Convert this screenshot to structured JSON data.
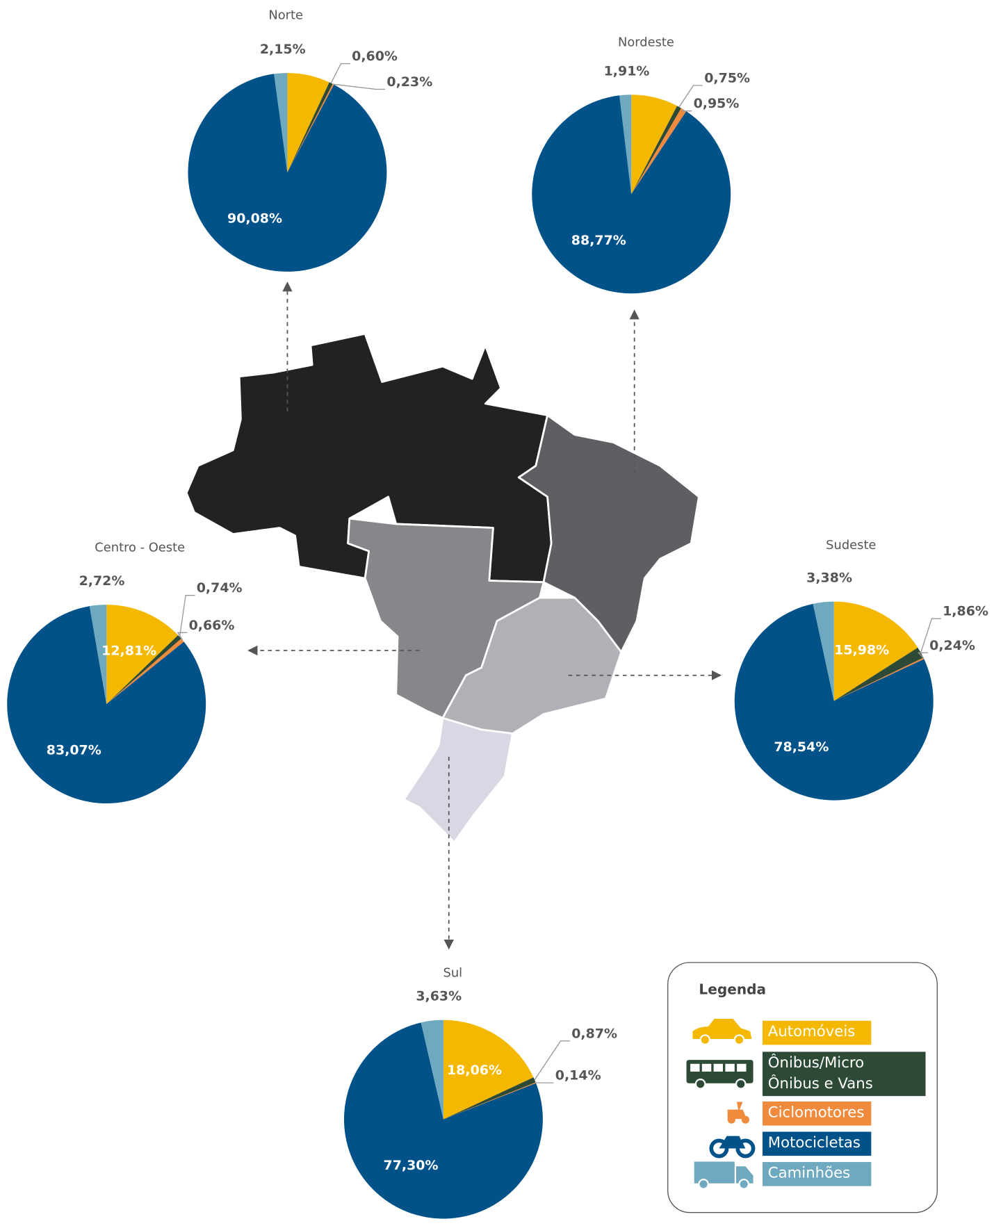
{
  "chart_data": [
    {
      "type": "pie",
      "title": "Norte",
      "categories": [
        "Automóveis",
        "Ônibus/Micro Ônibus e Vans",
        "Ciclomotores",
        "Motocicletas",
        "Caminhões"
      ],
      "values": [
        6.94,
        0.6,
        0.23,
        90.08,
        2.15
      ],
      "value_labels": [
        null,
        "0,60%",
        "0,23%",
        "90,08%",
        "2,15%"
      ],
      "colors": [
        "#f5b800",
        "#2d4a36",
        "#f08a3c",
        "#005288",
        "#6fa9c0"
      ]
    },
    {
      "type": "pie",
      "title": "Nordeste",
      "categories": [
        "Automóveis",
        "Ônibus/Micro Ônibus e Vans",
        "Ciclomotores",
        "Motocicletas",
        "Caminhões"
      ],
      "values": [
        7.62,
        0.75,
        0.95,
        88.77,
        1.91
      ],
      "value_labels": [
        null,
        "0,75%",
        "0,95%",
        "88,77%",
        "1,91%"
      ],
      "colors": [
        "#f5b800",
        "#2d4a36",
        "#f08a3c",
        "#005288",
        "#6fa9c0"
      ]
    },
    {
      "type": "pie",
      "title": "Centro - Oeste",
      "categories": [
        "Automóveis",
        "Ônibus/Micro Ônibus e Vans",
        "Ciclomotores",
        "Motocicletas",
        "Caminhões"
      ],
      "values": [
        12.81,
        0.74,
        0.66,
        83.07,
        2.72
      ],
      "value_labels": [
        "12,81%",
        "0,74%",
        "0,66%",
        "83,07%",
        "2,72%"
      ],
      "colors": [
        "#f5b800",
        "#2d4a36",
        "#f08a3c",
        "#005288",
        "#6fa9c0"
      ]
    },
    {
      "type": "pie",
      "title": "Sudeste",
      "categories": [
        "Automóveis",
        "Ônibus/Micro Ônibus e Vans",
        "Ciclomotores",
        "Motocicletas",
        "Caminhões"
      ],
      "values": [
        15.98,
        1.86,
        0.24,
        78.54,
        3.38
      ],
      "value_labels": [
        "15,98%",
        "1,86%",
        "0,24%",
        "78,54%",
        "3,38%"
      ],
      "colors": [
        "#f5b800",
        "#2d4a36",
        "#f08a3c",
        "#005288",
        "#6fa9c0"
      ]
    },
    {
      "type": "pie",
      "title": "Sul",
      "categories": [
        "Automóveis",
        "Ônibus/Micro Ônibus e Vans",
        "Ciclomotores",
        "Motocicletas",
        "Caminhões"
      ],
      "values": [
        18.06,
        0.87,
        0.14,
        77.3,
        3.63
      ],
      "value_labels": [
        "18,06%",
        "0,87%",
        "0,14%",
        "77,30%",
        "3,63%"
      ],
      "colors": [
        "#f5b800",
        "#2d4a36",
        "#f08a3c",
        "#005288",
        "#6fa9c0"
      ]
    }
  ],
  "legend": {
    "title": "Legenda"
  }
}
